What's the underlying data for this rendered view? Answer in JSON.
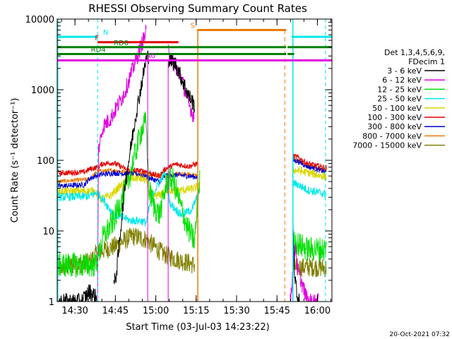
{
  "chart_data": {
    "type": "line",
    "title": "RHESSI Observing Summary Count Rates",
    "xlabel": "Start Time (03-Jul-03 14:23:22)",
    "ylabel": "Count Rate (s⁻¹ detector⁻¹)",
    "yscale": "log",
    "ylim": [
      1,
      10000
    ],
    "xlim_minutes_after_1423": [
      0,
      102
    ],
    "y_ticks": [
      "1",
      "10",
      "100",
      "1000",
      "10000"
    ],
    "x_ticks": [
      {
        "label": "14:30",
        "m": 6.6
      },
      {
        "label": "14:45",
        "m": 21.6
      },
      {
        "label": "15:00",
        "m": 36.6
      },
      {
        "label": "15:15",
        "m": 51.6
      },
      {
        "label": "15:30",
        "m": 66.6
      },
      {
        "label": "15:45",
        "m": 81.6
      },
      {
        "label": "16:00",
        "m": 96.6
      }
    ],
    "legend_header": [
      "Det 1,3,4,5,6,9,",
      "FDecim 1"
    ],
    "series": [
      {
        "name": "3 - 6 keV",
        "color": "#000000"
      },
      {
        "name": "6 - 12 keV",
        "color": "#e000e0"
      },
      {
        "name": "12 - 25 keV",
        "color": "#00e000"
      },
      {
        "name": "25 - 50 keV",
        "color": "#00e8e8"
      },
      {
        "name": "50 - 100 keV",
        "color": "#d8d800"
      },
      {
        "name": "100 - 300 keV",
        "color": "#e00000"
      },
      {
        "name": "300 - 800 keV",
        "color": "#0000d0"
      },
      {
        "name": "800 - 7000 keV",
        "color": "#f07800"
      },
      {
        "name": "7000 - 15000 keV",
        "color": "#808000"
      }
    ],
    "state_bars": [
      {
        "label": "N",
        "color": "#00e8e8",
        "segments": [
          [
            0,
            15
          ],
          [
            87,
            102
          ]
        ],
        "level": 5600
      },
      {
        "label": "S",
        "color": "#f07800",
        "segments": [
          [
            52,
            85
          ]
        ],
        "level": 7000
      },
      {
        "label": "F",
        "color": "#e00000",
        "segments": [
          [
            15,
            45
          ]
        ],
        "level": 4700
      },
      {
        "label": "RD0",
        "color": "#008000",
        "segments": [
          [
            0,
            85
          ],
          [
            85.5,
            102
          ]
        ],
        "level": 4000
      },
      {
        "label": "RD4",
        "color": "#008000",
        "segments": [
          [
            0,
            85
          ],
          [
            85.5,
            88
          ]
        ],
        "level": 3200
      },
      {
        "label": "A0",
        "color": "#e000e0",
        "segments": [
          [
            0,
            102
          ]
        ],
        "level": 2600
      }
    ],
    "annotations": {
      "vlines_cyan_dashed": [
        15,
        99.6
      ],
      "vlines_cyan_solid": [
        0.2,
        87.5
      ],
      "vline_orange_dashed": 84.5,
      "vline_orange_solid": 52.2,
      "vlines_magenta": [
        33.6,
        41.2
      ]
    }
  },
  "footer": {
    "date_stamp": "20-Oct-2021 07:32"
  }
}
